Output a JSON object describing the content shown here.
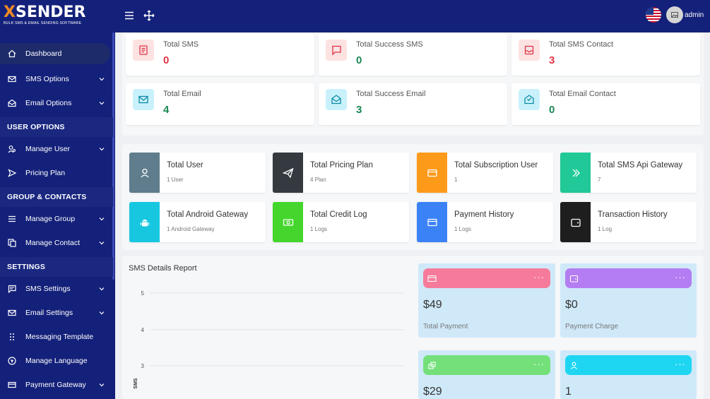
{
  "brand": {
    "logo_text": "XSENDER",
    "logo_sub": "BULK SMS & EMAIL SENDING SOFTWARE"
  },
  "sidebar": {
    "items": [
      {
        "label": "Dashboard",
        "icon": "home-icon"
      },
      {
        "label": "SMS Options",
        "icon": "envelope-icon"
      },
      {
        "label": "Email Options",
        "icon": "mail-open-icon"
      }
    ],
    "section_user": "USER OPTIONS",
    "user_items": [
      {
        "label": "Manage User",
        "icon": "users-icon"
      },
      {
        "label": "Pricing Plan",
        "icon": "send-icon"
      }
    ],
    "section_group": "GROUP & CONTACTS",
    "group_items": [
      {
        "label": "Manage Group",
        "icon": "list-icon"
      },
      {
        "label": "Manage Contact",
        "icon": "contacts-icon"
      }
    ],
    "section_settings": "SETTINGS",
    "settings_items": [
      {
        "label": "SMS Settings",
        "icon": "message-icon"
      },
      {
        "label": "Email Settings",
        "icon": "email-icon"
      },
      {
        "label": "Messaging Template",
        "icon": "dots-icon"
      },
      {
        "label": "Manage Language",
        "icon": "globe-icon"
      },
      {
        "label": "Payment Gateway",
        "icon": "card-icon"
      }
    ]
  },
  "topbar": {
    "user": "admin"
  },
  "stats": [
    {
      "label": "Total SMS",
      "value": "0",
      "color": "#dc3545",
      "bg": "#fde2e2"
    },
    {
      "label": "Total Success SMS",
      "value": "0",
      "color": "#198754",
      "bg": "#fde2e2"
    },
    {
      "label": "Total SMS Contact",
      "value": "3",
      "color": "#dc3545",
      "bg": "#fde2e2"
    },
    {
      "label": "Total Email",
      "value": "4",
      "color": "#198754",
      "bg": "#c9f1fb"
    },
    {
      "label": "Total Success Email",
      "value": "3",
      "color": "#198754",
      "bg": "#c9f1fb"
    },
    {
      "label": "Total Email Contact",
      "value": "0",
      "color": "#198754",
      "bg": "#c9f1fb"
    }
  ],
  "tiles": [
    {
      "title": "Total User",
      "sub": "1 User",
      "color": "#5f7d8c"
    },
    {
      "title": "Total Pricing Plan",
      "sub": "4 Plan",
      "color": "#343a40"
    },
    {
      "title": "Total Subscription User",
      "sub": "1",
      "color": "#fd9a1a"
    },
    {
      "title": "Total SMS Api Gateway",
      "sub": "7",
      "color": "#20c997"
    },
    {
      "title": "Total Android Gateway",
      "sub": "1 Android Gateway",
      "color": "#17c7e0"
    },
    {
      "title": "Total Credit Log",
      "sub": "1 Logs",
      "color": "#44d62c"
    },
    {
      "title": "Payment History",
      "sub": "1 Logs",
      "color": "#3b82f6"
    },
    {
      "title": "Transaction History",
      "sub": "1 Log",
      "color": "#1e1e1e"
    }
  ],
  "report": {
    "title": "SMS Details Report"
  },
  "chart_data": {
    "type": "line",
    "title": "SMS Details Report",
    "ylabel": "SMS",
    "yticks": [
      "5",
      "4",
      "3"
    ],
    "series": []
  },
  "money": [
    {
      "value": "$49",
      "label": "Total Payment",
      "bar": "#f67b9b"
    },
    {
      "value": "$0",
      "label": "Payment Charge",
      "bar": "#b57df2"
    },
    {
      "value": "$29",
      "label": "",
      "bar": "#74e07a"
    },
    {
      "value": "1",
      "label": "",
      "bar": "#1fd6f2"
    }
  ],
  "dots": "···"
}
